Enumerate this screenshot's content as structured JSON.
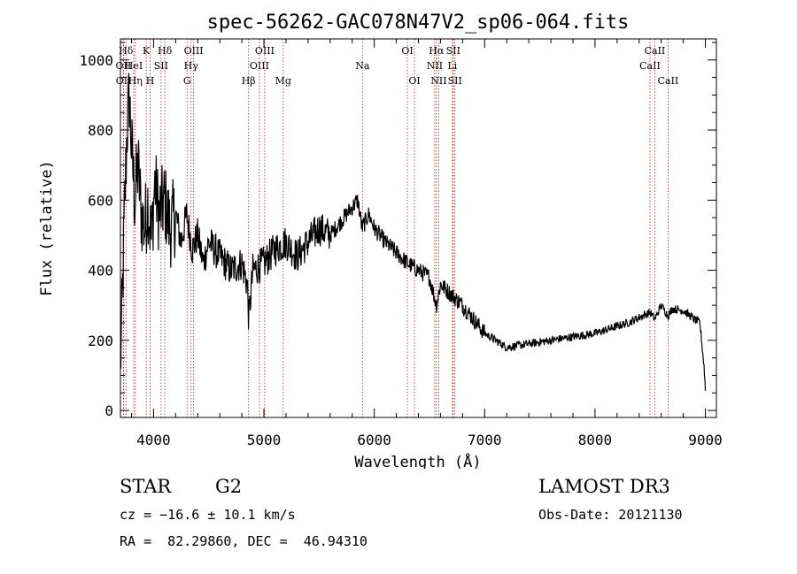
{
  "chart_data": {
    "type": "line",
    "title": "spec-56262-GAC078N47V2_sp06-064.fits",
    "xlabel": "Wavelength (Å)",
    "ylabel": "Flux (relative)",
    "xlim": [
      3700,
      9100
    ],
    "ylim": [
      -20,
      1060
    ],
    "xticks": [
      4000,
      5000,
      6000,
      7000,
      8000,
      9000
    ],
    "yticks": [
      0,
      200,
      400,
      600,
      800,
      1000
    ],
    "grid": false,
    "series": [
      {
        "name": "flux",
        "x": [
          3700,
          3720,
          3740,
          3760,
          3780,
          3800,
          3830,
          3860,
          3890,
          3920,
          3950,
          3980,
          4010,
          4050,
          4100,
          4150,
          4200,
          4250,
          4300,
          4350,
          4400,
          4450,
          4500,
          4600,
          4700,
          4800,
          4850,
          4862,
          4900,
          5000,
          5100,
          5200,
          5300,
          5400,
          5500,
          5600,
          5700,
          5800,
          5850,
          5890,
          5950,
          6000,
          6100,
          6200,
          6300,
          6400,
          6500,
          6563,
          6600,
          6700,
          6800,
          6900,
          7000,
          7100,
          7200,
          7300,
          7400,
          7500,
          7600,
          7700,
          7800,
          7900,
          8000,
          8100,
          8200,
          8300,
          8400,
          8500,
          8542,
          8600,
          8662,
          8700,
          8800,
          8900,
          8950,
          8990,
          9000
        ],
        "y": [
          120,
          350,
          600,
          800,
          900,
          750,
          600,
          700,
          560,
          520,
          600,
          480,
          650,
          560,
          600,
          520,
          560,
          480,
          560,
          460,
          500,
          420,
          480,
          440,
          400,
          420,
          360,
          260,
          400,
          420,
          460,
          480,
          440,
          480,
          520,
          500,
          540,
          580,
          600,
          520,
          560,
          520,
          480,
          450,
          420,
          400,
          380,
          300,
          360,
          330,
          300,
          260,
          220,
          200,
          180,
          185,
          190,
          195,
          200,
          205,
          210,
          215,
          220,
          230,
          240,
          250,
          265,
          280,
          260,
          300,
          270,
          290,
          285,
          260,
          250,
          120,
          60
        ]
      }
    ],
    "spectral_lines": [
      {
        "label": "Hδ",
        "wavelength": 3750,
        "row": 1
      },
      {
        "label": "OII",
        "wavelength": 3727,
        "row": 2
      },
      {
        "label": "OII",
        "wavelength": 3729,
        "row": 3
      },
      {
        "label": "HeI",
        "wavelength": 3820,
        "row": 2
      },
      {
        "label": "Hη",
        "wavelength": 3835,
        "row": 3
      },
      {
        "label": "K",
        "wavelength": 3934,
        "row": 1
      },
      {
        "label": "SII",
        "wavelength": 4068,
        "row": 2
      },
      {
        "label": "H",
        "wavelength": 3969,
        "row": 3
      },
      {
        "label": "Hδ",
        "wavelength": 4102,
        "row": 1
      },
      {
        "label": "OIII",
        "wavelength": 4363,
        "row": 1
      },
      {
        "label": "Hγ",
        "wavelength": 4340,
        "row": 2
      },
      {
        "label": "G",
        "wavelength": 4304,
        "row": 3
      },
      {
        "label": "OIII",
        "wavelength": 5007,
        "row": 1
      },
      {
        "label": "OIII",
        "wavelength": 4959,
        "row": 2
      },
      {
        "label": "Hβ",
        "wavelength": 4861,
        "row": 3
      },
      {
        "label": "Mg",
        "wavelength": 5175,
        "row": 3
      },
      {
        "label": "Na",
        "wavelength": 5893,
        "row": 2
      },
      {
        "label": "OI",
        "wavelength": 6300,
        "row": 1
      },
      {
        "label": "OI",
        "wavelength": 6364,
        "row": 3
      },
      {
        "label": "Hα",
        "wavelength": 6563,
        "row": 1
      },
      {
        "label": "SII",
        "wavelength": 6716,
        "row": 1
      },
      {
        "label": "NII",
        "wavelength": 6548,
        "row": 2
      },
      {
        "label": "Li",
        "wavelength": 6708,
        "row": 2
      },
      {
        "label": "NII",
        "wavelength": 6584,
        "row": 3
      },
      {
        "label": "SII",
        "wavelength": 6731,
        "row": 3
      },
      {
        "label": "CaII",
        "wavelength": 8542,
        "row": 1
      },
      {
        "label": "CaII",
        "wavelength": 8498,
        "row": 2
      },
      {
        "label": "CaII",
        "wavelength": 8662,
        "row": 3
      }
    ]
  },
  "info": {
    "object_class": "STAR",
    "subclass": "G2",
    "survey": "LAMOST DR3",
    "cz": "cz = −16.6 ± 10.1 km/s",
    "obs_date": "Obs-Date: 20121130",
    "coords": "RA =  82.29860, DEC =  46.94310"
  },
  "colors": {
    "spectrum": "#000000",
    "line_marker": "#b22222",
    "text": "#000000"
  }
}
